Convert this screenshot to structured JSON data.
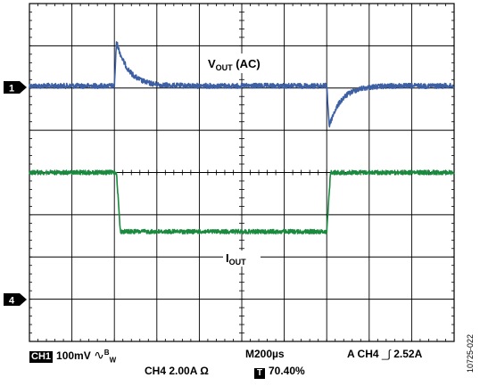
{
  "chart_data": {
    "type": "line",
    "grid": true,
    "divisions": {
      "x": 10,
      "y": 8
    },
    "series": [
      {
        "name": "VOUT (AC)",
        "label_main": "V",
        "label_sub": "OUT",
        "label_suffix": " (AC)",
        "color": "#3d5fa3",
        "channel_marker": "1",
        "baseline_div": 1.95,
        "step1_div": 2.0,
        "step2_div": 7.0,
        "spike1_div": -1.05,
        "spike2_div": 0.95,
        "spike_tau_div": 0.28
      },
      {
        "name": "IOUT",
        "label_main": "I",
        "label_sub": "OUT",
        "label_suffix": "",
        "color": "#1a8a3e",
        "channel_marker": "4",
        "high_div": 4.0,
        "low_div": 5.4,
        "fall_div": 2.05,
        "rise_div": 7.0
      }
    ]
  },
  "status": {
    "ch1_badge": "CH1",
    "ch1_setting": "100mV",
    "ch1_bw_symbol": "∿",
    "ch1_bw_sup": "B",
    "ch1_bw_sub": "W",
    "timebase": "M200µs",
    "trigger_prefix": "A  CH4",
    "trigger_symbol": "_∫",
    "trigger_level": "2.52A",
    "ch4_setting": "CH4  2.00A Ω",
    "t_badge": "T",
    "trigger_position": "70.40%"
  },
  "figure_id": "10725-022"
}
